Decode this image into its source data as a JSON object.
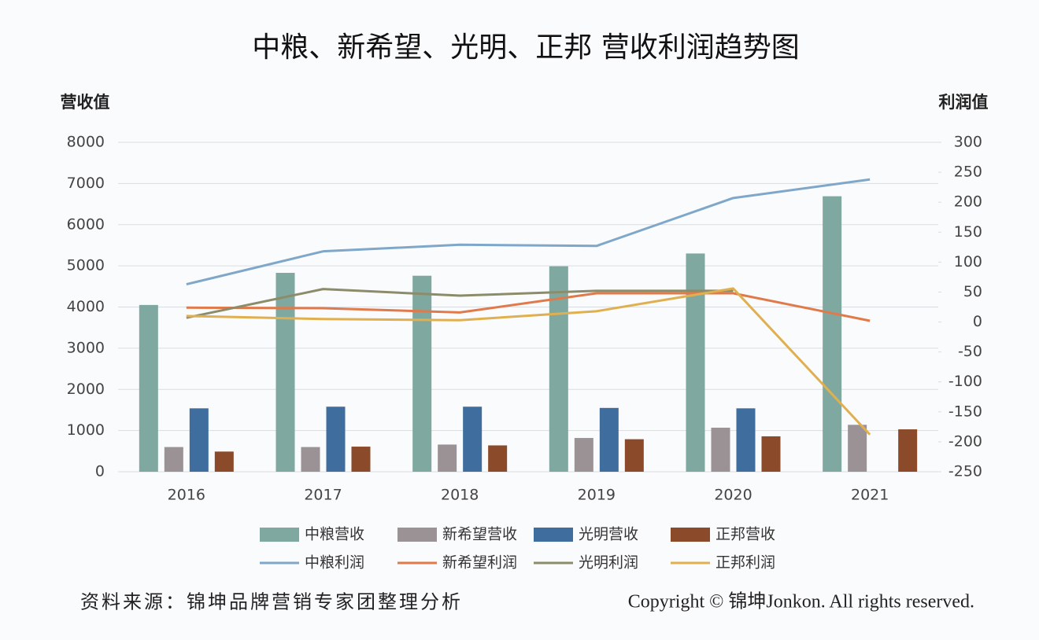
{
  "chart_data": {
    "type": "bar-line",
    "title": "中粮、新希望、光明、正邦 营收利润趋势图",
    "y_label": "营收值",
    "y2_label": "利润值",
    "categories": [
      "2016",
      "2017",
      "2018",
      "2019",
      "2020",
      "2021"
    ],
    "ylim": [
      0,
      8000
    ],
    "yticks": [
      0,
      1000,
      2000,
      3000,
      4000,
      5000,
      6000,
      7000,
      8000
    ],
    "y2lim": [
      -250,
      300
    ],
    "y2ticks": [
      -250,
      -200,
      -150,
      -100,
      -50,
      0,
      50,
      100,
      150,
      200,
      250,
      300
    ],
    "grid": true,
    "series": [
      {
        "name": "中粮营收",
        "type": "bar",
        "color": "#7fa8a0",
        "values": [
          4050,
          4830,
          4760,
          4990,
          5300,
          6690
        ]
      },
      {
        "name": "新希望营收",
        "type": "bar",
        "color": "#9a9295",
        "values": [
          600,
          600,
          660,
          820,
          1070,
          1140
        ]
      },
      {
        "name": "光明营收",
        "type": "bar",
        "color": "#3f6e9e",
        "values": [
          1540,
          1580,
          1580,
          1550,
          1540,
          null
        ]
      },
      {
        "name": "正邦营收",
        "type": "bar",
        "color": "#8b4a2a",
        "values": [
          490,
          610,
          640,
          790,
          860,
          1030
        ]
      },
      {
        "name": "中粮利润",
        "type": "line",
        "axis": "y2",
        "color": "#7fa7c9",
        "values": [
          63,
          118,
          129,
          127,
          207,
          238
        ]
      },
      {
        "name": "新希望利润",
        "type": "line",
        "axis": "y2",
        "color": "#e07a4a",
        "values": [
          24,
          23,
          16,
          48,
          48,
          2
        ]
      },
      {
        "name": "光明利润",
        "type": "line",
        "axis": "y2",
        "color": "#8c8c6a",
        "values": [
          7,
          55,
          44,
          52,
          52,
          null
        ]
      },
      {
        "name": "正邦利润",
        "type": "line",
        "axis": "y2",
        "color": "#e0b050",
        "values": [
          10,
          5,
          3,
          18,
          56,
          -188
        ]
      }
    ],
    "source": "资料来源：锦坤品牌营销专家团整理分析",
    "copyright": "Copyright © 锦坤Jonkon. All rights reserved."
  }
}
